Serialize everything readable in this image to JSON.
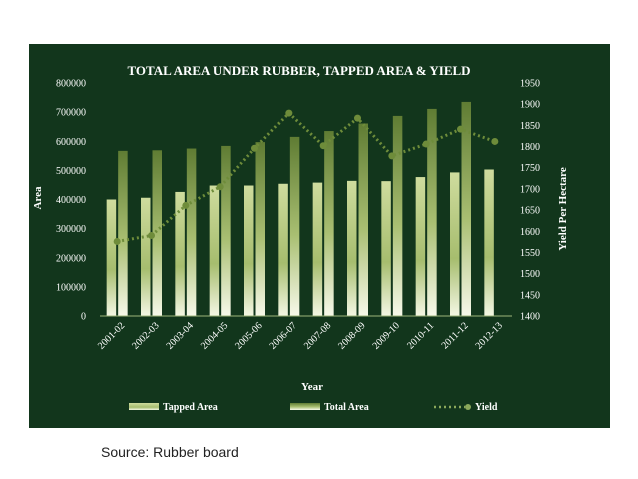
{
  "source": "Source: Rubber board",
  "chart_data": {
    "type": "bar",
    "title": "TOTAL AREA UNDER RUBBER, TAPPED AREA & YIELD",
    "xlabel": "Year",
    "ylabel": "Area",
    "y2label": "Yield Per Hectare",
    "categories": [
      "2001-02",
      "2002-03",
      "2003-04",
      "2004-05",
      "2005-06",
      "2006-07",
      "2007-08",
      "2008-09",
      "2009-10",
      "2010-11",
      "2011-12",
      "2012-13"
    ],
    "ylim": [
      0,
      800000
    ],
    "y_ticks": [
      "0",
      "100000",
      "200000",
      "300000",
      "400000",
      "500000",
      "600000",
      "700000",
      "800000"
    ],
    "y2lim": [
      1400,
      1950
    ],
    "y2_ticks": [
      "1400",
      "1450",
      "1500",
      "1550",
      "1600",
      "1650",
      "1700",
      "1750",
      "1800",
      "1850",
      "1900",
      "1950"
    ],
    "series": [
      {
        "name": "Tapped Area",
        "kind": "bar",
        "axis": "left",
        "values": [
          400000,
          406000,
          426000,
          448000,
          448000,
          454000,
          458000,
          464000,
          463000,
          477000,
          493000,
          503000
        ]
      },
      {
        "name": "Total Area",
        "kind": "bar",
        "axis": "left",
        "values": [
          567000,
          569000,
          575000,
          584000,
          597000,
          615000,
          635000,
          661000,
          687000,
          711000,
          735000,
          null
        ]
      },
      {
        "name": "Yield",
        "kind": "line",
        "axis": "right",
        "values": [
          1576,
          1590,
          1661,
          1705,
          1796,
          1879,
          1802,
          1867,
          1778,
          1806,
          1841,
          1812
        ]
      }
    ],
    "legend_position": "bottom",
    "colors": {
      "background": "#12361c",
      "bar_dark": "#6f8a3a",
      "bar_light": "#f4f7e4",
      "line": "#6e8c3a",
      "text": "#ffffff"
    }
  }
}
